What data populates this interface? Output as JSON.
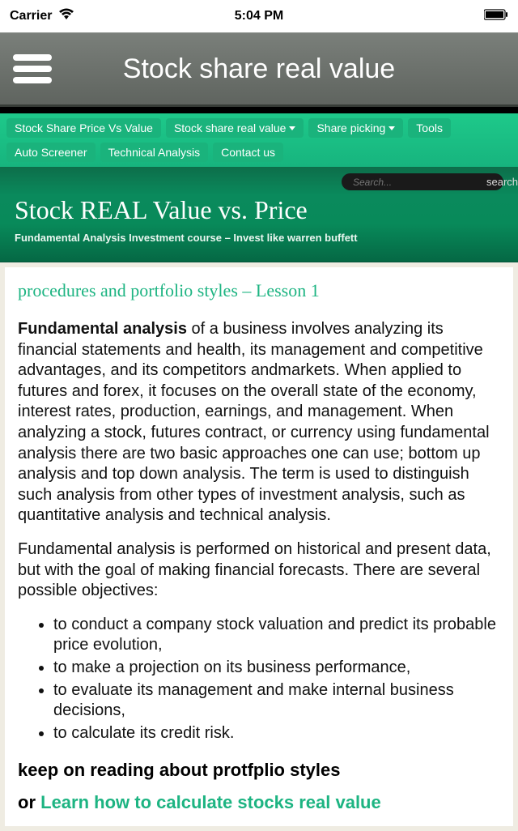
{
  "status": {
    "carrier": "Carrier",
    "time": "5:04 PM"
  },
  "header": {
    "title": "Stock share real value"
  },
  "nav": {
    "items": [
      {
        "label": "Stock Share Price Vs Value",
        "dropdown": false
      },
      {
        "label": "Stock share real value",
        "dropdown": true
      },
      {
        "label": "Share picking",
        "dropdown": true
      },
      {
        "label": "Tools",
        "dropdown": false
      },
      {
        "label": "Auto Screener",
        "dropdown": false
      },
      {
        "label": "Technical Analysis",
        "dropdown": false
      },
      {
        "label": "Contact us",
        "dropdown": false
      }
    ]
  },
  "search": {
    "placeholder": "Search...",
    "button": "search"
  },
  "hero": {
    "title": "Stock REAL Value vs. Price",
    "subtitle": "Fundamental Analysis Investment course – Invest like warren buffett"
  },
  "article": {
    "lesson_title": "procedures and portfolio styles – Lesson 1",
    "p1_bold": "Fundamental analysis",
    "p1_rest": " of a business involves analyzing its financial statements and health, its management and competitive advantages, and its competitors andmarkets. When applied to futures and forex, it focuses on the overall state of the economy, interest rates, production, earnings, and management. When analyzing a stock, futures contract, or currency using fundamental analysis there are two basic approaches one can use; bottom up analysis and top down analysis. The term is used to distinguish such analysis from other types of investment analysis, such as quantitative analysis and technical analysis.",
    "p2": "Fundamental analysis is performed on historical and present data, but with the goal of making financial forecasts. There are several possible objectives:",
    "bullets": [
      "to conduct a company stock valuation and predict its probable price evolution,",
      "to make a projection on its business performance,",
      "to evaluate its management and make internal business decisions,",
      "to calculate its credit risk."
    ],
    "reading_head": "keep on reading about protfplio styles",
    "cta_prefix": "or ",
    "cta_link": "Learn how to calculate stocks real value"
  },
  "colors": {
    "accent": "#1db482",
    "nav_bg": "#1ab37c",
    "hero_top": "#0d6e4a",
    "hero_bottom": "#056844",
    "header_top": "#7a7f7a",
    "header_bottom": "#5f645f",
    "content_bg": "#efece2"
  }
}
